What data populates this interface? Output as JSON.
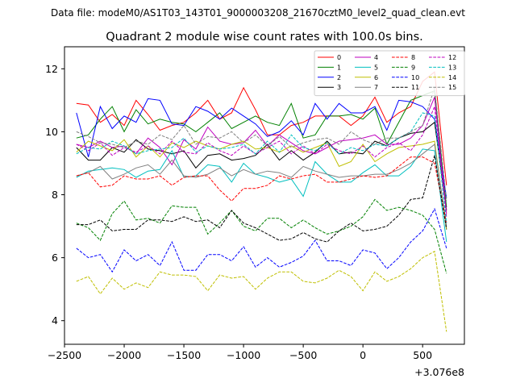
{
  "suptitle": "Data file: modeM0/AS1T03_143T01_9000003208_21670cztM0_level2_quad_clean.evt",
  "chart_data": {
    "type": "line",
    "title": "Quadrant 2 module wise count rates with 100.0s bins.",
    "xlabel": "",
    "ylabel": "",
    "x_offset_label": "+3.076e8",
    "xlim": [
      -2500,
      850
    ],
    "ylim": [
      3.25,
      12.7
    ],
    "x_ticks": [
      -2500,
      -2000,
      -1500,
      -1000,
      -500,
      0,
      500
    ],
    "x_tick_labels": [
      "−2500",
      "−2000",
      "−1500",
      "−1000",
      "−500",
      "0",
      "500"
    ],
    "y_ticks": [
      4,
      6,
      8,
      10,
      12
    ],
    "y_tick_labels": [
      "4",
      "6",
      "8",
      "10",
      "12"
    ],
    "legend_position": "upper right",
    "legend_columns": 4,
    "x": [
      -2400,
      -2300,
      -2200,
      -2100,
      -2000,
      -1900,
      -1800,
      -1700,
      -1600,
      -1500,
      -1400,
      -1300,
      -1200,
      -1100,
      -1000,
      -900,
      -800,
      -700,
      -600,
      -500,
      -400,
      -300,
      -200,
      -100,
      0,
      100,
      200,
      300,
      400,
      500,
      600,
      700
    ],
    "series": [
      {
        "name": "0",
        "color": "#ff0000",
        "dash": "solid",
        "values": [
          10.9,
          10.85,
          10.3,
          10.55,
          10.2,
          11.0,
          10.55,
          10.05,
          10.2,
          10.3,
          10.6,
          11.0,
          10.4,
          10.6,
          11.4,
          10.7,
          9.9,
          9.9,
          10.2,
          10.3,
          10.5,
          10.5,
          10.5,
          10.2,
          10.5,
          11.1,
          10.3,
          10.6,
          10.8,
          11.6,
          11.9,
          8.3
        ]
      },
      {
        "name": "1",
        "color": "#008000",
        "dash": "solid",
        "values": [
          9.8,
          9.9,
          10.4,
          10.8,
          10.0,
          10.7,
          10.25,
          10.4,
          10.3,
          10.25,
          10.0,
          10.3,
          10.6,
          10.1,
          10.3,
          10.5,
          10.3,
          10.2,
          10.9,
          9.8,
          9.9,
          10.5,
          10.5,
          10.55,
          10.4,
          10.75,
          9.6,
          10.3,
          11.0,
          11.15,
          11.3,
          7.6
        ]
      },
      {
        "name": "2",
        "color": "#0000ff",
        "dash": "solid",
        "values": [
          10.6,
          9.2,
          10.8,
          10.1,
          10.5,
          10.3,
          11.05,
          11.0,
          10.25,
          10.2,
          10.8,
          10.65,
          10.4,
          10.75,
          10.5,
          10.25,
          9.85,
          10.0,
          10.35,
          9.9,
          10.9,
          10.4,
          10.9,
          10.6,
          10.6,
          10.8,
          10.05,
          11.0,
          10.95,
          10.8,
          10.4,
          7.9
        ]
      },
      {
        "name": "3",
        "color": "#000000",
        "dash": "solid",
        "values": [
          9.5,
          9.1,
          9.1,
          9.5,
          9.35,
          9.75,
          9.45,
          9.4,
          9.3,
          9.4,
          8.85,
          9.25,
          9.3,
          9.1,
          9.15,
          9.25,
          9.6,
          9.1,
          9.4,
          9.1,
          9.35,
          9.7,
          9.3,
          9.35,
          9.3,
          9.7,
          9.55,
          9.8,
          9.95,
          10.0,
          10.3,
          7.5
        ]
      },
      {
        "name": "4",
        "color": "#bf00bf",
        "dash": "solid",
        "values": [
          9.6,
          9.5,
          9.7,
          9.5,
          9.55,
          9.3,
          9.8,
          9.5,
          8.95,
          9.75,
          9.45,
          10.15,
          9.7,
          9.6,
          9.65,
          10.05,
          9.55,
          9.9,
          9.65,
          9.4,
          9.3,
          9.5,
          9.7,
          9.75,
          9.8,
          9.9,
          9.6,
          9.6,
          9.8,
          10.2,
          11.1,
          7.4
        ]
      },
      {
        "name": "5",
        "color": "#00bfbf",
        "dash": "solid",
        "values": [
          8.55,
          8.75,
          8.8,
          8.85,
          8.8,
          8.55,
          8.75,
          8.8,
          9.4,
          8.55,
          8.6,
          8.95,
          8.9,
          8.4,
          9.0,
          8.65,
          8.55,
          8.4,
          8.5,
          7.95,
          9.05,
          8.65,
          8.4,
          8.4,
          8.7,
          8.95,
          8.6,
          8.6,
          8.9,
          9.45,
          9.4,
          6.5
        ]
      },
      {
        "name": "6",
        "color": "#bfbf00",
        "dash": "solid",
        "values": [
          9.35,
          9.7,
          9.55,
          9.4,
          9.75,
          9.2,
          9.55,
          9.2,
          9.65,
          9.5,
          9.7,
          9.55,
          9.45,
          9.6,
          9.7,
          9.45,
          9.5,
          9.35,
          9.55,
          9.35,
          9.5,
          9.65,
          8.9,
          9.05,
          9.6,
          9.05,
          9.3,
          9.5,
          9.55,
          9.6,
          9.7,
          6.9
        ]
      },
      {
        "name": "7",
        "color": "#808080",
        "dash": "solid",
        "values": [
          8.6,
          8.7,
          8.9,
          8.5,
          8.65,
          8.85,
          8.95,
          8.65,
          9.1,
          8.6,
          8.55,
          8.65,
          8.85,
          8.6,
          8.8,
          8.65,
          8.75,
          8.7,
          8.55,
          8.9,
          8.75,
          8.65,
          8.55,
          8.6,
          8.6,
          8.65,
          8.65,
          8.8,
          9.0,
          9.3,
          9.6,
          7.0
        ]
      },
      {
        "name": "8",
        "color": "#ff0000",
        "dash": "dashed",
        "values": [
          8.6,
          8.7,
          8.25,
          8.3,
          8.6,
          8.5,
          8.5,
          8.6,
          8.3,
          8.55,
          8.6,
          8.6,
          8.15,
          7.8,
          8.2,
          8.2,
          8.3,
          8.6,
          8.5,
          8.6,
          8.65,
          8.4,
          8.4,
          8.5,
          8.6,
          8.55,
          8.6,
          8.9,
          9.2,
          9.2,
          9.0,
          7.1
        ]
      },
      {
        "name": "9",
        "color": "#008000",
        "dash": "dashed",
        "values": [
          7.1,
          6.95,
          6.55,
          7.4,
          7.8,
          7.2,
          7.25,
          7.1,
          7.65,
          7.6,
          7.6,
          6.75,
          7.1,
          7.5,
          7.0,
          6.85,
          7.25,
          7.25,
          6.95,
          7.2,
          6.95,
          6.75,
          6.85,
          7.0,
          7.3,
          7.85,
          7.5,
          7.6,
          7.5,
          7.35,
          6.9,
          5.5
        ]
      },
      {
        "name": "10",
        "color": "#0000ff",
        "dash": "dashed",
        "values": [
          6.3,
          6.0,
          6.1,
          5.55,
          6.25,
          5.9,
          6.1,
          5.75,
          6.5,
          5.6,
          5.6,
          6.1,
          6.1,
          5.9,
          6.35,
          5.7,
          6.0,
          5.7,
          5.85,
          6.05,
          6.55,
          5.9,
          5.9,
          5.75,
          6.25,
          6.15,
          5.65,
          6.0,
          6.5,
          6.85,
          7.55,
          6.3
        ]
      },
      {
        "name": "11",
        "color": "#000000",
        "dash": "dashed",
        "values": [
          7.05,
          7.05,
          7.2,
          6.85,
          6.9,
          6.9,
          7.2,
          7.2,
          7.15,
          7.3,
          7.15,
          7.2,
          6.95,
          7.5,
          7.1,
          6.95,
          6.75,
          6.55,
          6.6,
          6.8,
          6.6,
          6.5,
          6.85,
          7.1,
          6.85,
          6.9,
          7.0,
          7.35,
          7.85,
          7.9,
          9.25,
          6.9
        ]
      },
      {
        "name": "12",
        "color": "#bf00bf",
        "dash": "dashed",
        "values": [
          9.6,
          9.4,
          9.65,
          9.25,
          9.5,
          9.35,
          9.55,
          9.3,
          9.7,
          9.35,
          9.3,
          9.65,
          9.4,
          9.25,
          9.55,
          9.3,
          9.5,
          9.7,
          9.3,
          9.55,
          9.3,
          9.6,
          9.4,
          9.3,
          9.55,
          9.2,
          9.5,
          9.65,
          9.4,
          9.9,
          10.8,
          7.3
        ]
      },
      {
        "name": "13",
        "color": "#00bfbf",
        "dash": "dashed",
        "values": [
          9.3,
          9.5,
          9.45,
          9.7,
          9.55,
          9.3,
          9.4,
          9.45,
          9.5,
          9.8,
          9.35,
          9.55,
          9.45,
          9.5,
          9.6,
          9.3,
          9.7,
          9.35,
          9.9,
          9.5,
          9.4,
          9.65,
          9.3,
          9.5,
          9.4,
          9.6,
          9.55,
          9.8,
          10.0,
          10.6,
          10.5,
          7.1
        ]
      },
      {
        "name": "14",
        "color": "#bfbf00",
        "dash": "dashed",
        "values": [
          5.25,
          5.4,
          4.85,
          5.35,
          5.0,
          5.2,
          5.05,
          5.55,
          5.45,
          5.45,
          5.4,
          4.95,
          5.45,
          5.35,
          5.4,
          5.0,
          5.35,
          5.55,
          5.55,
          5.25,
          5.2,
          5.35,
          5.6,
          5.4,
          4.95,
          5.55,
          5.25,
          5.4,
          5.65,
          6.0,
          6.2,
          3.65
        ]
      },
      {
        "name": "15",
        "color": "#808080",
        "dash": "dashed",
        "values": [
          10.0,
          9.85,
          9.65,
          9.6,
          9.5,
          9.7,
          9.6,
          9.9,
          9.75,
          10.2,
          9.6,
          9.85,
          9.8,
          10.0,
          9.65,
          9.9,
          9.55,
          9.85,
          9.5,
          9.65,
          9.75,
          9.8,
          9.6,
          10.0,
          9.75,
          9.6,
          9.8,
          9.8,
          10.0,
          10.2,
          11.4,
          7.8
        ]
      }
    ]
  }
}
